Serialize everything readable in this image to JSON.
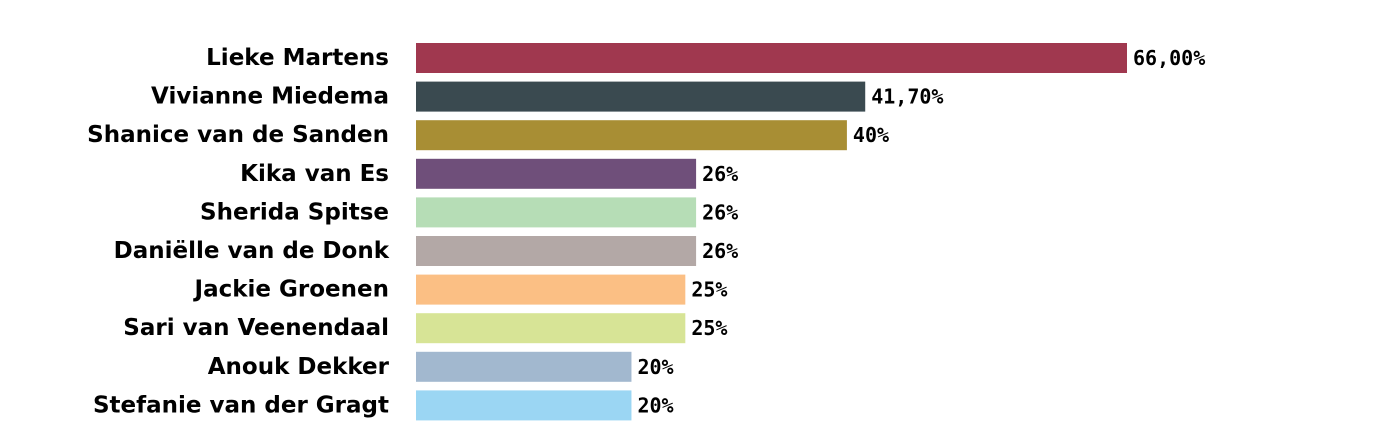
{
  "chart_data": {
    "type": "bar",
    "orientation": "horizontal",
    "title": "",
    "xlabel": "",
    "ylabel": "",
    "xlim": [
      0,
      70
    ],
    "grid": false,
    "legend": "none",
    "categories": [
      "Lieke Martens",
      "Vivianne Miedema",
      "Shanice van de Sanden",
      "Kika van Es",
      "Sherida Spitse",
      "Daniëlle van de Donk",
      "Jackie Groenen",
      "Sari van Veenendaal",
      "Anouk Dekker",
      "Stefanie van der Gragt"
    ],
    "values": [
      66,
      41.7,
      40,
      26,
      26,
      26,
      25,
      25,
      20,
      20
    ],
    "value_labels": [
      "66,00%",
      "41,70%",
      "40%",
      "26%",
      "26%",
      "26%",
      "25%",
      "25%",
      "20%",
      "20%"
    ],
    "colors": [
      "#a0384f",
      "#3a4a50",
      "#a88e34",
      "#6f4f7a",
      "#b6ddb6",
      "#b3a8a6",
      "#fbbf84",
      "#d7e496",
      "#a2b8cf",
      "#9bd6f3"
    ]
  }
}
